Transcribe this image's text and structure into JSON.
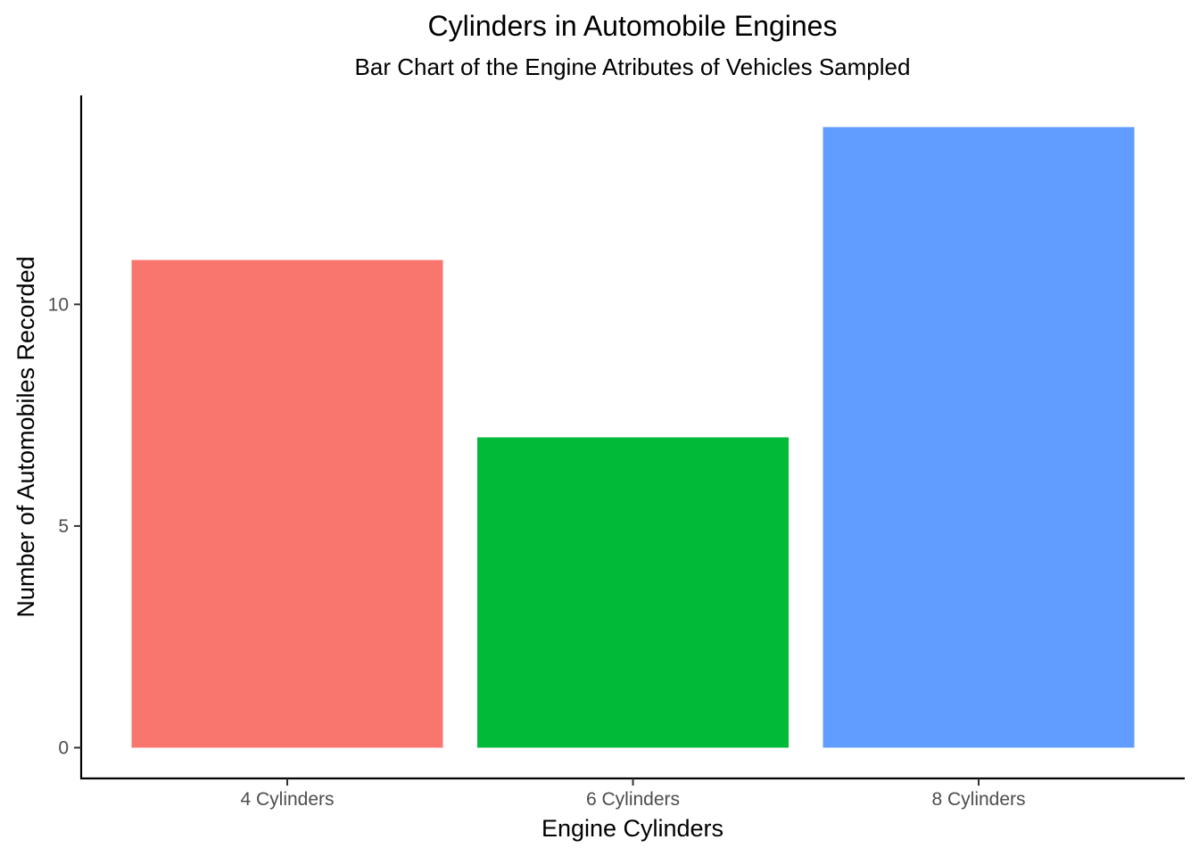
{
  "chart_data": {
    "type": "bar",
    "title": "Cylinders in Automobile Engines",
    "subtitle": "Bar Chart of the Engine Atributes of Vehicles Sampled",
    "xlabel": "Engine Cylinders",
    "ylabel": "Number of Automobiles Recorded",
    "categories": [
      "4 Cylinders",
      "6 Cylinders",
      "8 Cylinders"
    ],
    "values": [
      11,
      7,
      14
    ],
    "colors": [
      "#F8766D",
      "#00BA38",
      "#619CFF"
    ],
    "ylim": [
      0,
      14
    ],
    "y_ticks": [
      0,
      5,
      10
    ],
    "y_tick_labels": [
      "0",
      "5",
      "10"
    ],
    "grid": false,
    "legend": "none"
  }
}
